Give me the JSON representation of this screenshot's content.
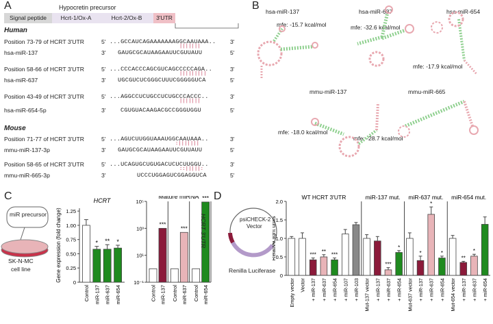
{
  "panels": {
    "A": "A",
    "B": "B",
    "C": "C",
    "D": "D"
  },
  "panel_a": {
    "precursor_title": "Hypocretin precursor",
    "segments": [
      "Signal peptide",
      "Hcrt-1/Ox-A",
      "Hcrt-2/Ox-B",
      "3'UTR"
    ],
    "human_header": "Human",
    "mouse_header": "Mouse",
    "five": "5'",
    "three": "3'",
    "pairs": [
      {
        "top_label": "Position 73-79 of HCRT 3'UTR",
        "top_seq": "...GCCAUCAGAAAAAAAGGCAAUAAA..",
        "bars": "|||||||",
        "bot_label": "hsa-miR-137",
        "bot_seq": "GAUGCGCAUAAGAAUUCGUUAUU"
      },
      {
        "top_label": "Position 58-66 of HCRT 3'UTR",
        "top_seq": "...CCCACCCAGCGUCAGCCCCCAGA..",
        "bars": "|||||||||",
        "bot_label": "hsa-miR-637",
        "bot_seq": "UGCGUCUCGGGCUUUCGGGGGUCA"
      },
      {
        "top_label": "Position 43-49 of HCRT 3'UTR",
        "top_seq": "...AGGCCUCUGCCUCUGCCCACCC..",
        "bars": "|||||||",
        "bot_label": "hsa-miR-654-5p",
        "bot_seq": "CGUGUACAAGACGCCGGGUGGU"
      },
      {
        "top_label": "Position 71-77 of HCRT 3'UTR",
        "top_seq": "...AGUCUUGGUAAAUGGCAAUAAA..",
        "bars": ":|||||||",
        "bot_label": "mmu-miR-137-3p",
        "bot_seq": "GAUGCGCAUAAGAAUUCGUUAUU"
      },
      {
        "top_label": "Position 58-65 of HCRT 3'UTR",
        "top_seq": "...UCAGUGCUGUGACUCUCUUGGU..",
        "bars": "::|||||:",
        "bot_label": "mmu-miR-665-3p",
        "bot_seq": "UCCCUGGAGUCGGAGGUCA"
      }
    ]
  },
  "panel_b": {
    "structures": [
      {
        "name": "hsa-miR-137",
        "mfe": "mfe: -15.7 kcal/mol"
      },
      {
        "name": "hsa-miR-637",
        "mfe": "mfe: -32.6 kcal/mol"
      },
      {
        "name": "hsa-miR-654",
        "mfe": "mfe: -17.9 kcal/mol"
      },
      {
        "name": "mmu-miR-137",
        "mfe": "mfe: -18.0 kcal/mol"
      },
      {
        "name": "mmu-miR-665",
        "mfe": "mfe: -28.7 kcal/mol"
      }
    ]
  },
  "panel_c": {
    "mir_precursor": "miR precursor",
    "cell_line": "SK-N-MC\ncell line",
    "cell_line_1": "SK-N-MC",
    "cell_line_2": "cell line"
  },
  "panel_d": {
    "vector": "psiCHECK-2\nVector",
    "vector_1": "psiCHECK-2",
    "vector_2": "Vector",
    "hcrt_utr": "HCRT 3'UTR",
    "renilla": "Renilla Luciferase"
  },
  "chart_data": [
    {
      "type": "bar",
      "title": "HCRT",
      "ylabel": "Gene expression (fold change)",
      "categories": [
        "Control",
        "miR-137",
        "miR-637",
        "miR-654"
      ],
      "values": [
        1.0,
        0.58,
        0.58,
        0.6
      ],
      "errors": [
        0.1,
        0.05,
        0.08,
        0.05
      ],
      "stars": [
        "",
        "*",
        "**",
        "*"
      ],
      "colors": [
        "#ffffff",
        "#1f8a1f",
        "#1f8a1f",
        "#1f8a1f"
      ],
      "yticks": [
        "0",
        "0.25",
        "0.50",
        "0.75",
        "1.00",
        "1.25"
      ],
      "ylim": [
        0,
        1.3
      ]
    },
    {
      "type": "bar",
      "title": "Mature miRNA",
      "scale": "log",
      "categories": [
        "Control",
        "miR-137",
        "Control",
        "miR-637",
        "Control",
        "miR-654"
      ],
      "values": [
        1,
        1000,
        1,
        500,
        1,
        90000
      ],
      "stars": [
        "",
        "***",
        "",
        "***",
        "",
        "***"
      ],
      "colors": [
        "#ffffff",
        "#8b1a3a",
        "#ffffff",
        "#e8b4b8",
        "#ffffff",
        "#1f8a1f"
      ],
      "yticks": [
        "10⁻¹",
        "10¹",
        "10³",
        "10⁵"
      ],
      "ytick_values": [
        0.1,
        10,
        1000,
        100000
      ],
      "ylim": [
        0.1,
        100000
      ]
    },
    {
      "type": "bar",
      "ylabel": "Relative light units",
      "groups": [
        "WT HCRT 3'UTR",
        "miR-137 mut.",
        "miR-637 mut.",
        "miR-654 mut."
      ],
      "categories": [
        "Empty vector",
        "Vector",
        "+ miR-137",
        "+ miR-637",
        "+ miR-654",
        "+ miR-107",
        "+ miR-103",
        "Mut-137 vector",
        "+ miR-137",
        "+ miR-637",
        "+ miR-654",
        "Mut-637 vector",
        "+ miR-137",
        "+ miR-637",
        "+ miR-654",
        "Mut-654 vector",
        "+ miR-137",
        "+ miR-637",
        "+ miR-654"
      ],
      "values": [
        1.0,
        1.0,
        0.42,
        0.5,
        0.42,
        1.12,
        1.37,
        1.0,
        0.93,
        0.15,
        0.62,
        1.0,
        0.4,
        1.65,
        0.47,
        1.0,
        0.35,
        0.52,
        1.38
      ],
      "errors": [
        0.05,
        0.15,
        0.05,
        0.06,
        0.05,
        0.12,
        0.06,
        0.1,
        0.12,
        0.06,
        0.05,
        0.15,
        0.12,
        0.2,
        0.05,
        0.08,
        0.03,
        0.05,
        0.2
      ],
      "stars": [
        "",
        "",
        "***",
        "**",
        "***",
        "",
        "",
        "",
        "",
        "***",
        "*",
        "",
        "*",
        "*",
        "*",
        "",
        "**",
        "*",
        ""
      ],
      "colors": [
        "#ffffff",
        "#ffffff",
        "#8b1a3a",
        "#e8b4b8",
        "#1f8a1f",
        "#ffffff",
        "#888888",
        "#ffffff",
        "#8b1a3a",
        "#e8b4b8",
        "#1f8a1f",
        "#ffffff",
        "#8b1a3a",
        "#e8b4b8",
        "#1f8a1f",
        "#ffffff",
        "#8b1a3a",
        "#e8b4b8",
        "#1f8a1f"
      ],
      "yticks": [
        "0",
        "0.5",
        "1.0",
        "1.5",
        "2.0"
      ],
      "ylim": [
        0,
        2.0
      ]
    }
  ]
}
